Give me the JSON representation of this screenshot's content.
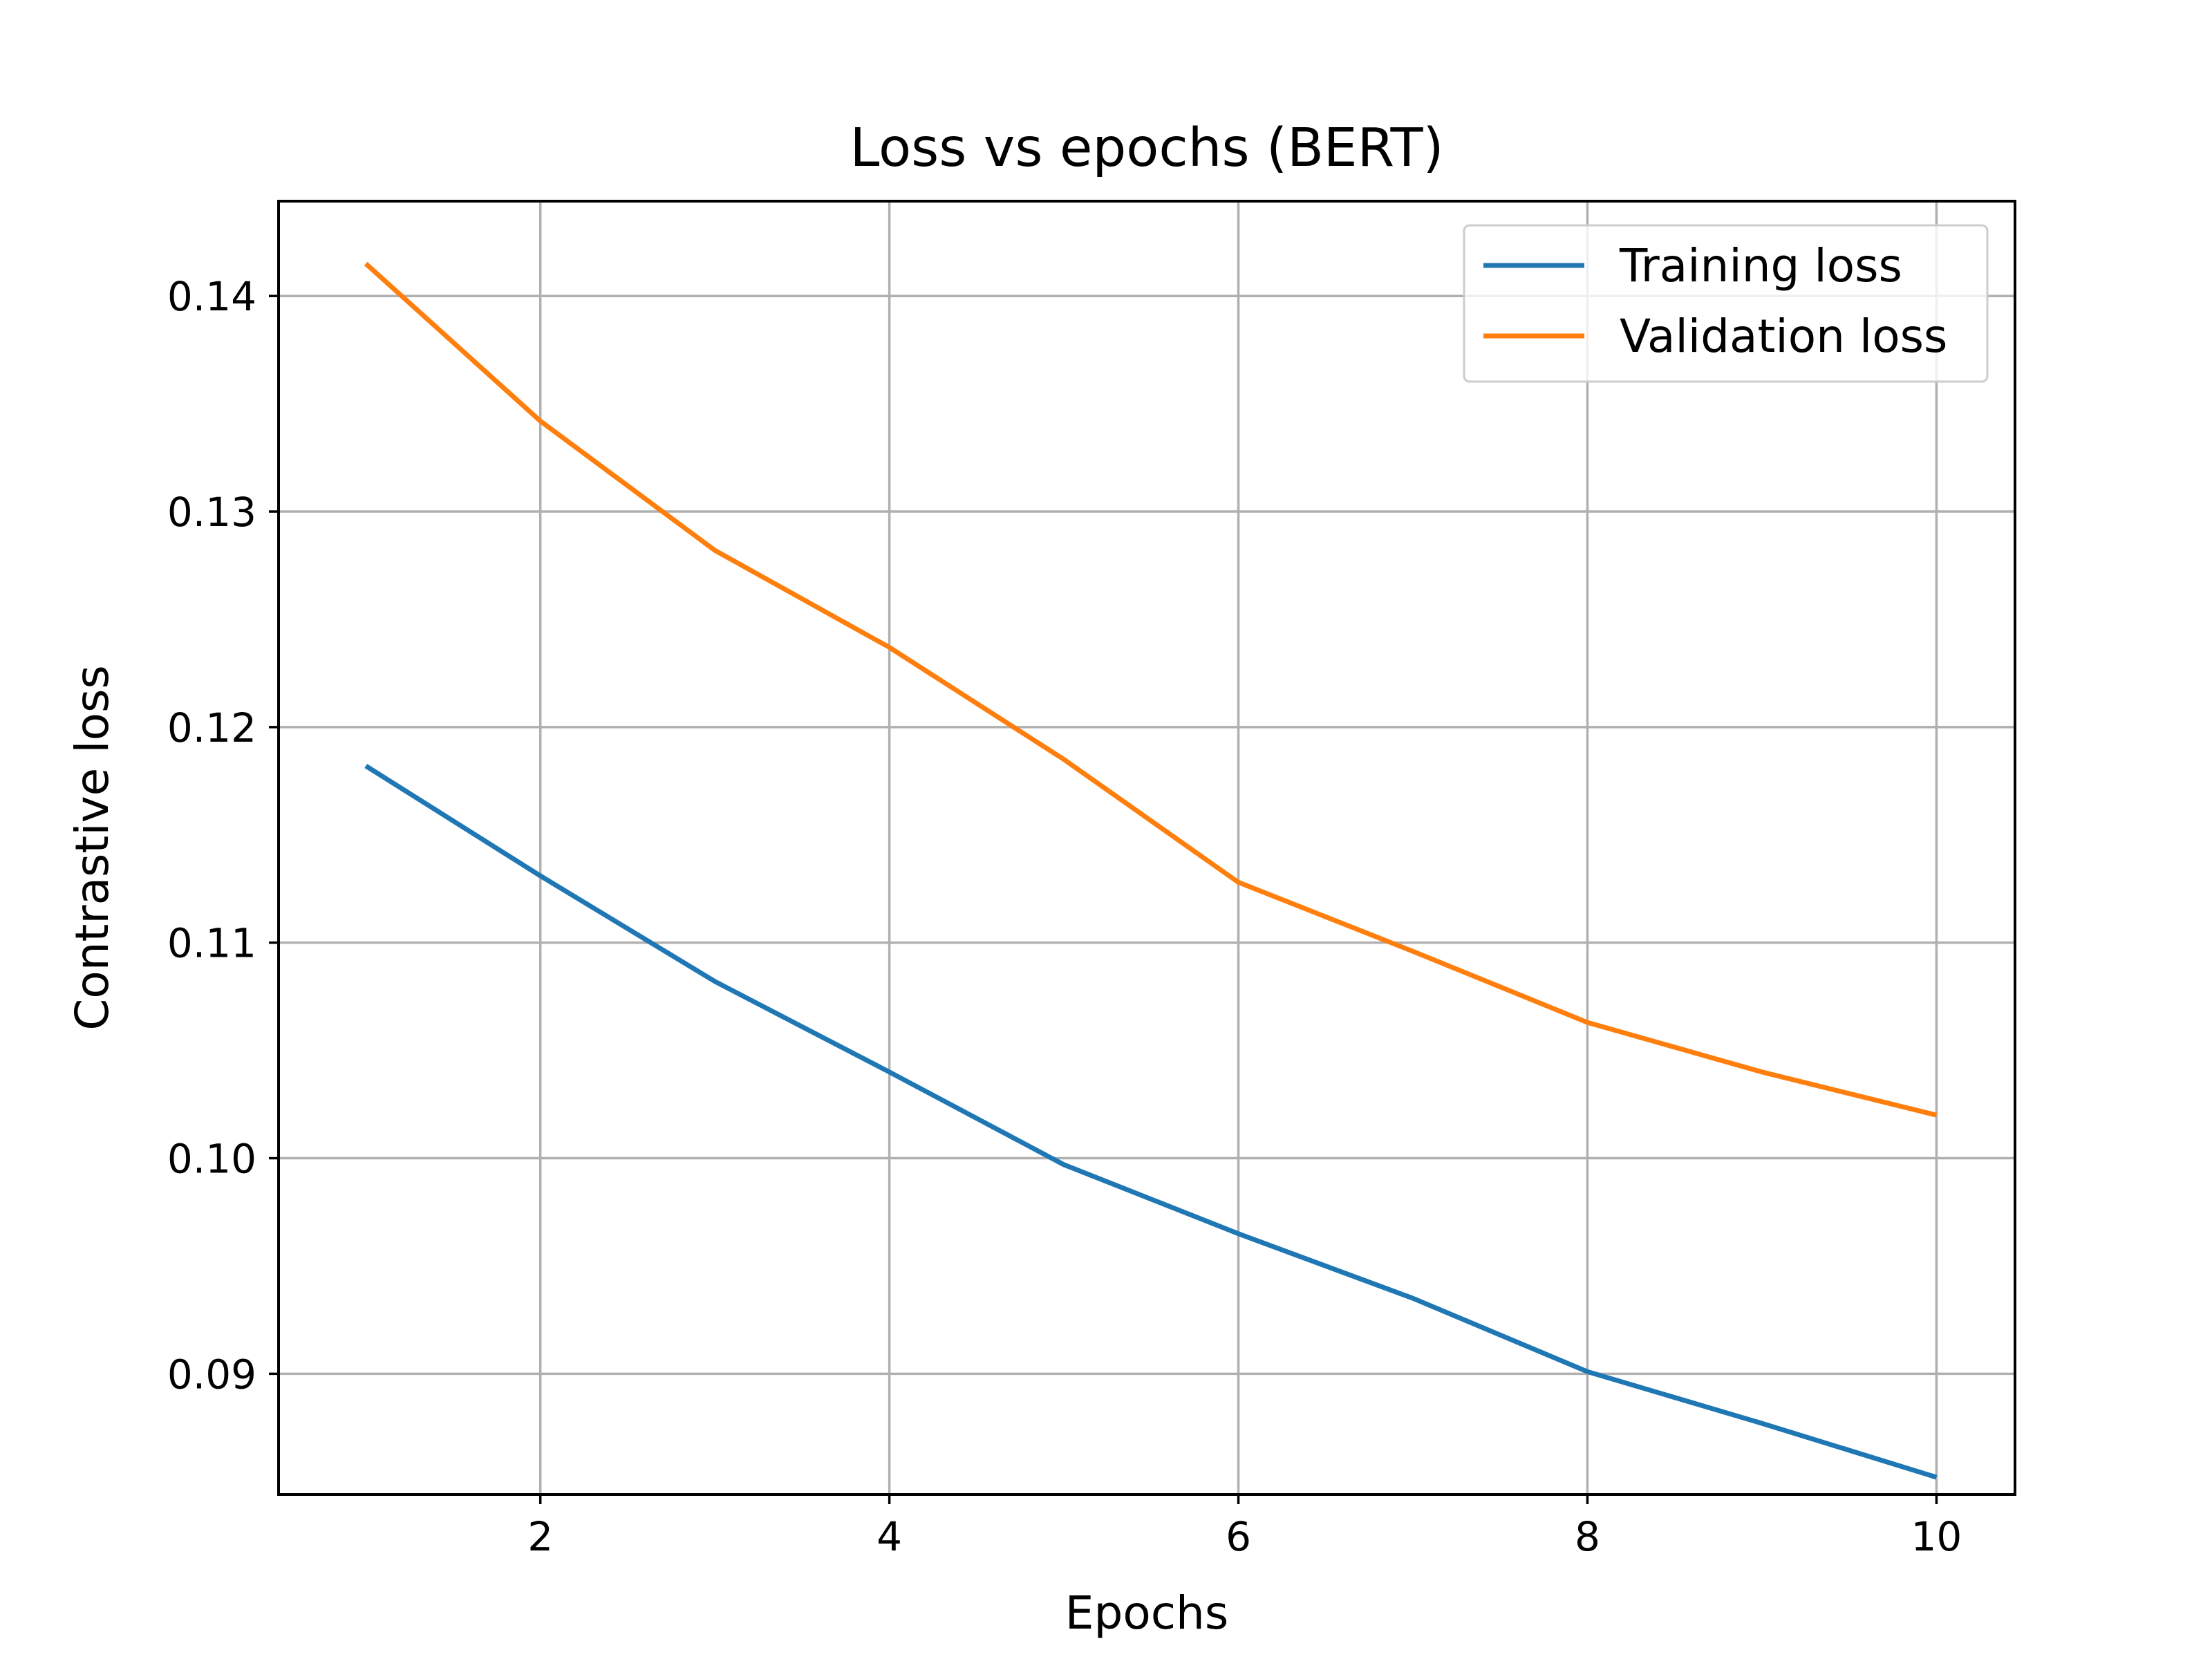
{
  "chart_data": {
    "type": "line",
    "title": "Loss vs epochs (BERT)",
    "xlabel": "Epochs",
    "ylabel": "Contrastive loss",
    "x": [
      1,
      2,
      3,
      4,
      5,
      6,
      7,
      8,
      9,
      10
    ],
    "xlim": [
      0.5,
      10.45
    ],
    "ylim": [
      0.0844,
      0.1444
    ],
    "xticks": [
      2,
      4,
      6,
      8,
      10
    ],
    "xtick_labels": [
      "2",
      "4",
      "6",
      "8",
      "10"
    ],
    "yticks": [
      0.09,
      0.1,
      0.11,
      0.12,
      0.13,
      0.14
    ],
    "ytick_labels": [
      "0.09",
      "0.10",
      "0.11",
      "0.12",
      "0.13",
      "0.14"
    ],
    "grid": true,
    "legend_position": "top-right",
    "series": [
      {
        "name": "Training loss",
        "color": "#1f77b4",
        "values": [
          0.1182,
          0.1131,
          0.1082,
          0.104,
          0.0997,
          0.0965,
          0.0935,
          0.0901,
          0.0877,
          0.0852
        ]
      },
      {
        "name": "Validation loss",
        "color": "#ff7f0e",
        "values": [
          0.1415,
          0.1342,
          0.1282,
          0.1237,
          0.1185,
          0.1128,
          0.1096,
          0.1063,
          0.104,
          0.102
        ]
      }
    ]
  }
}
